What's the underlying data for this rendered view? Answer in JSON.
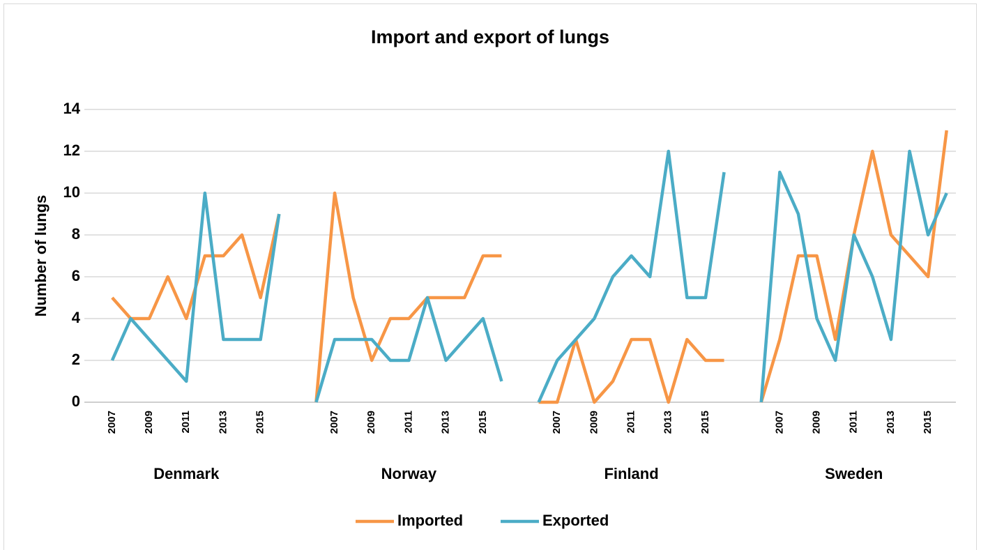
{
  "chart_data": {
    "type": "line",
    "title": "Import and export of lungs",
    "y_label": "Number of lungs",
    "category_groups": [
      {
        "name": "Denmark",
        "categories": [
          null,
          "2007",
          null,
          "2009",
          null,
          "2011",
          null,
          "2013",
          null,
          "2015",
          null,
          null
        ]
      },
      {
        "name": "Norway",
        "categories": [
          null,
          "2007",
          null,
          "2009",
          null,
          "2011",
          null,
          "2013",
          null,
          "2015",
          null,
          null
        ]
      },
      {
        "name": "Finland",
        "categories": [
          null,
          "2007",
          null,
          "2009",
          null,
          "2011",
          null,
          "2013",
          null,
          "2015",
          null,
          null
        ]
      },
      {
        "name": "Sweden",
        "categories": [
          null,
          "2007",
          null,
          "2009",
          null,
          "2011",
          null,
          "2013",
          null,
          "2015",
          null
        ]
      }
    ],
    "series": [
      {
        "name": "Imported",
        "color": "#f79646",
        "values": [
          null,
          5,
          4,
          4,
          6,
          4,
          7,
          7,
          8,
          5,
          9,
          null,
          0,
          10,
          5,
          2,
          4,
          4,
          5,
          5,
          5,
          7,
          7,
          null,
          0,
          0,
          3,
          0,
          1,
          3,
          3,
          0,
          3,
          2,
          2,
          null,
          0,
          3,
          7,
          7,
          3,
          8,
          12,
          8,
          7,
          6,
          13
        ]
      },
      {
        "name": "Exported",
        "color": "#4bacc6",
        "values": [
          null,
          2,
          4,
          3,
          2,
          1,
          10,
          3,
          3,
          3,
          9,
          null,
          0,
          3,
          3,
          3,
          2,
          2,
          5,
          2,
          3,
          4,
          1,
          null,
          0,
          2,
          3,
          4,
          6,
          7,
          6,
          12,
          5,
          5,
          11,
          null,
          0,
          11,
          9,
          4,
          2,
          8,
          6,
          3,
          12,
          8,
          10
        ]
      }
    ],
    "ylim": [
      0,
      14
    ],
    "yticks": [
      0,
      2,
      4,
      6,
      8,
      10,
      12,
      14
    ],
    "grid": true,
    "legend": "bottom"
  }
}
